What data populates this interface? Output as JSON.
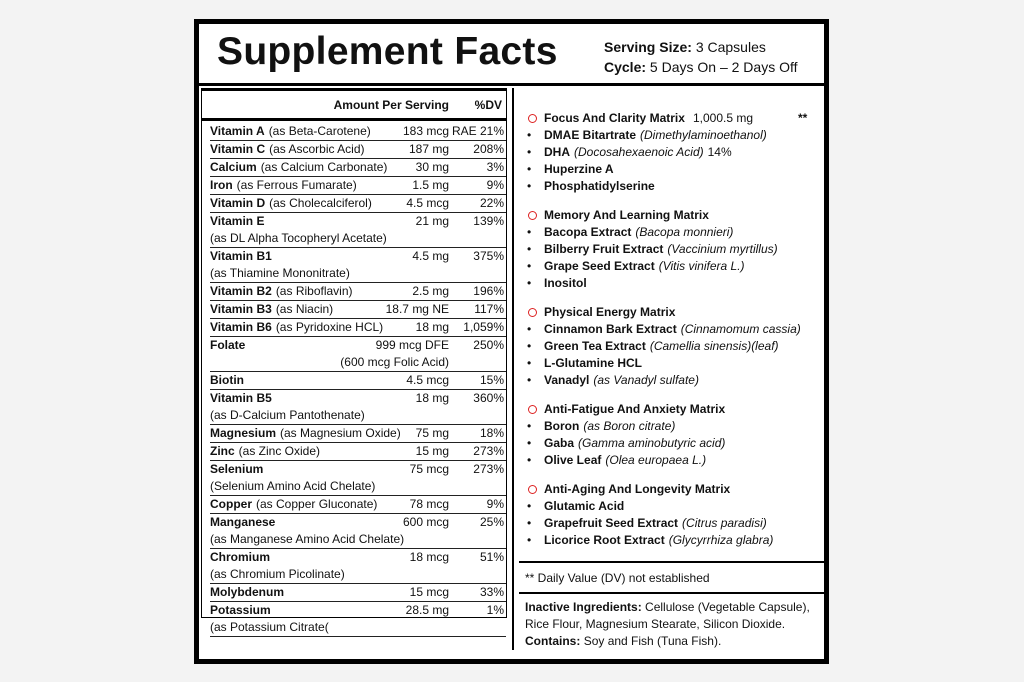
{
  "header": {
    "title": "Supplement Facts",
    "serving_label": "Serving Size:",
    "serving": "3 Capsules",
    "cycle_label": "Cycle:",
    "cycle": "5 Days On – 2 Days Off"
  },
  "nutrients": {
    "amount_header": "Amount Per Serving",
    "dv_header": "%DV",
    "rows": [
      {
        "name": "Vitamin A",
        "source": "(as Beta-Carotene)",
        "amount": "183 mcg",
        "dv": "RAE 21%"
      },
      {
        "name": "Vitamin C",
        "source": "(as Ascorbic Acid)",
        "amount": "187 mg",
        "dv": "208%"
      },
      {
        "name": "Calcium",
        "source": "(as Calcium Carbonate)",
        "amount": "30 mg",
        "dv": "3%"
      },
      {
        "name": "Iron",
        "source": "(as Ferrous Fumarate)",
        "amount": "1.5 mg",
        "dv": "9%"
      },
      {
        "name": "Vitamin D",
        "source": "(as Cholecalciferol)",
        "amount": "4.5 mcg",
        "dv": "22%"
      },
      {
        "name": "Vitamin E",
        "source": "(as DL Alpha Tocopheryl Acetate)",
        "amount": "21 mg",
        "dv": "139%"
      },
      {
        "name": "Vitamin B1",
        "source": "(as Thiamine Mononitrate)",
        "amount": "4.5 mg",
        "dv": "375%"
      },
      {
        "name": "Vitamin B2",
        "source": "(as Riboflavin)",
        "amount": "2.5 mg",
        "dv": "196%"
      },
      {
        "name": "Vitamin B3",
        "source": "(as Niacin)",
        "amount": "18.7 mg NE",
        "dv": "117%"
      },
      {
        "name": "Vitamin B6",
        "source": "(as Pyridoxine HCL)",
        "amount": "18 mg",
        "dv": "1,059%"
      },
      {
        "name": "Folate",
        "amount": "999 mcg DFE",
        "dv": "250%",
        "note": "(600 mcg Folic Acid)"
      },
      {
        "name": "Biotin",
        "amount": "4.5 mcg",
        "dv": "15%"
      },
      {
        "name": "Vitamin B5",
        "source": "(as D-Calcium Pantothenate)",
        "amount": "18 mg",
        "dv": "360%"
      },
      {
        "name": "Magnesium",
        "source": "(as Magnesium Oxide)",
        "amount": "75 mg",
        "dv": "18%"
      },
      {
        "name": "Zinc",
        "source": "(as Zinc Oxide)",
        "amount": "15 mg",
        "dv": "273%"
      },
      {
        "name": "Selenium",
        "source": "(Selenium Amino Acid Chelate)",
        "amount": "75 mcg",
        "dv": "273%"
      },
      {
        "name": "Copper",
        "source": "(as Copper Gluconate)",
        "amount": "78 mcg",
        "dv": "9%"
      },
      {
        "name": "Manganese",
        "source": "(as Manganese Amino Acid Chelate)",
        "amount": "600 mcg",
        "dv": "25%"
      },
      {
        "name": "Chromium",
        "source": "(as Chromium Picolinate)",
        "amount": "18 mcg",
        "dv": "51%"
      },
      {
        "name": "Molybdenum",
        "amount": "15 mcg",
        "dv": "33%"
      },
      {
        "name": "Potassium",
        "source": "(as Potassium Citrate(",
        "amount": "28.5 mg",
        "dv": "1%"
      }
    ]
  },
  "matrices": [
    {
      "name": "Focus And Clarity Matrix",
      "amount": "1,000.5 mg",
      "note": "**",
      "items": [
        {
          "name": "DMAE Bitartrate",
          "latin": "(Dimethylaminoethanol)"
        },
        {
          "name": "DHA",
          "latin": "(Docosahexaenoic Acid)",
          "extra": "14%"
        },
        {
          "name": "Huperzine A"
        },
        {
          "name": "Phosphatidylserine"
        }
      ]
    },
    {
      "name": "Memory And Learning Matrix",
      "items": [
        {
          "name": "Bacopa Extract",
          "latin": "(Bacopa monnieri)"
        },
        {
          "name": "Bilberry Fruit Extract",
          "latin": "(Vaccinium myrtillus)"
        },
        {
          "name": "Grape Seed Extract",
          "latin": "(Vitis vinifera L.)"
        },
        {
          "name": "Inositol"
        }
      ]
    },
    {
      "name": "Physical Energy Matrix",
      "items": [
        {
          "name": "Cinnamon Bark Extract",
          "latin": "(Cinnamomum cassia)"
        },
        {
          "name": "Green Tea Extract",
          "latin": "(Camellia sinensis)(leaf)"
        },
        {
          "name": "L-Glutamine HCL"
        },
        {
          "name": "Vanadyl",
          "latin": "(as Vanadyl sulfate)"
        }
      ]
    },
    {
      "name": "Anti-Fatigue And Anxiety Matrix",
      "items": [
        {
          "name": "Boron",
          "latin": "(as Boron citrate)"
        },
        {
          "name": "Gaba",
          "latin": "(Gamma aminobutyric acid)"
        },
        {
          "name": "Olive Leaf",
          "latin": "(Olea europaea L.)"
        }
      ]
    },
    {
      "name": "Anti-Aging And Longevity Matrix",
      "items": [
        {
          "name": "Glutamic Acid"
        },
        {
          "name": "Grapefruit Seed Extract",
          "latin": "(Citrus paradisi)"
        },
        {
          "name": "Licorice Root Extract",
          "latin": "(Glycyrrhiza glabra)"
        }
      ]
    }
  ],
  "footnote": "** Daily Value (DV) not established",
  "inactive": {
    "label": "Inactive Ingredients:",
    "text": "Cellulose (Vegetable Capsule), Rice Flour, Magnesium Stearate, Silicon Dioxide.",
    "contains_label": "Contains:",
    "contains": "Soy and Fish (Tuna Fish)."
  }
}
